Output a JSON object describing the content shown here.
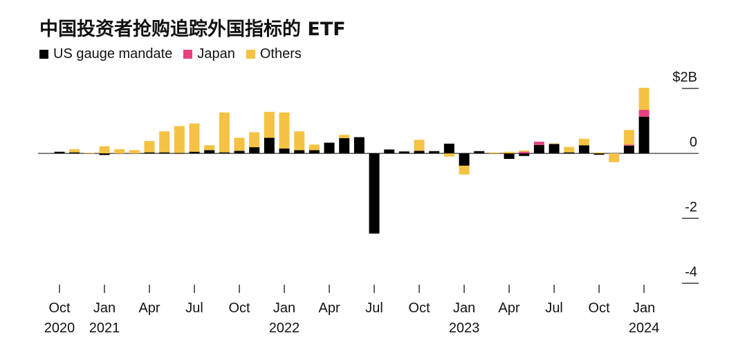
{
  "chart_data": {
    "type": "bar",
    "stacked": true,
    "title": "中国投资者抢购追踪外国指标的 ETF",
    "xlabel": "",
    "ylabel": "",
    "ylim": [
      -4,
      2
    ],
    "y_ticks": [
      {
        "value": 2,
        "label": "$2B"
      },
      {
        "value": 0,
        "label": "0"
      },
      {
        "value": -2,
        "label": "-2"
      },
      {
        "value": -4,
        "label": "-4"
      }
    ],
    "legend_position": "top-left",
    "colors": {
      "US gauge mandate": "#000000",
      "Japan": "#e8417f",
      "Others": "#f5c243"
    },
    "x_tick_labels": [
      {
        "month": "Oct",
        "year": "2020",
        "index": 0
      },
      {
        "month": "Jan",
        "year": "2021",
        "index": 3
      },
      {
        "month": "Apr",
        "year": "",
        "index": 6
      },
      {
        "month": "Jul",
        "year": "",
        "index": 9
      },
      {
        "month": "Oct",
        "year": "",
        "index": 12
      },
      {
        "month": "Jan",
        "year": "2022",
        "index": 15
      },
      {
        "month": "Apr",
        "year": "",
        "index": 18
      },
      {
        "month": "Jul",
        "year": "",
        "index": 21
      },
      {
        "month": "Oct",
        "year": "",
        "index": 24
      },
      {
        "month": "Jan",
        "year": "2023",
        "index": 27
      },
      {
        "month": "Apr",
        "year": "",
        "index": 30
      },
      {
        "month": "Jul",
        "year": "",
        "index": 33
      },
      {
        "month": "Oct",
        "year": "",
        "index": 36
      },
      {
        "month": "Jan",
        "year": "2024",
        "index": 39
      }
    ],
    "categories": [
      "2020-10",
      "2020-11",
      "2020-12",
      "2021-01",
      "2021-02",
      "2021-03",
      "2021-04",
      "2021-05",
      "2021-06",
      "2021-07",
      "2021-08",
      "2021-09",
      "2021-10",
      "2021-11",
      "2021-12",
      "2022-01",
      "2022-02",
      "2022-03",
      "2022-04",
      "2022-05",
      "2022-06",
      "2022-07",
      "2022-08",
      "2022-09",
      "2022-10",
      "2022-11",
      "2022-12",
      "2023-01",
      "2023-02",
      "2023-03",
      "2023-04",
      "2023-05",
      "2023-06",
      "2023-07",
      "2023-08",
      "2023-09",
      "2023-10",
      "2023-11",
      "2023-12",
      "2024-01"
    ],
    "series": [
      {
        "name": "US gauge mandate",
        "values": [
          0.05,
          0.03,
          0,
          -0.05,
          0,
          0,
          0.03,
          0.03,
          0.01,
          0.05,
          0.1,
          0.03,
          0.08,
          0.19,
          0.48,
          0.15,
          0.1,
          0.1,
          0.33,
          0.47,
          0.5,
          -2.47,
          0.12,
          0.06,
          0.08,
          0.07,
          0.3,
          -0.38,
          0.07,
          0,
          -0.17,
          -0.08,
          0.26,
          0.29,
          0.03,
          0.25,
          -0.04,
          0,
          0.24,
          1.13
        ]
      },
      {
        "name": "Japan",
        "values": [
          0,
          0,
          0,
          0,
          0,
          0,
          0,
          0,
          0,
          0,
          0,
          0,
          0,
          0,
          0,
          0,
          0,
          0,
          0,
          0,
          0,
          0,
          0,
          0,
          0,
          0,
          0,
          0,
          0,
          0,
          0,
          0.05,
          0.1,
          0,
          0,
          0,
          0,
          0,
          0.03,
          0.21
        ]
      },
      {
        "name": "Others",
        "values": [
          0,
          0.1,
          0.02,
          0.22,
          0.13,
          0.1,
          0.35,
          0.65,
          0.83,
          0.87,
          0.15,
          1.23,
          0.4,
          0.46,
          0.8,
          1.11,
          0.58,
          0.17,
          0,
          0.1,
          0,
          0,
          0,
          0,
          0.34,
          0,
          -0.1,
          -0.27,
          0,
          0.03,
          0.05,
          0.04,
          0,
          0.02,
          0.17,
          0.2,
          0.03,
          -0.27,
          0.45,
          0.68
        ]
      }
    ]
  }
}
